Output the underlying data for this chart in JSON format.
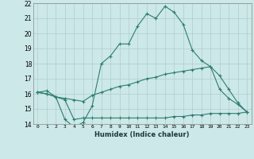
{
  "xlabel": "Humidex (Indice chaleur)",
  "x": [
    0,
    1,
    2,
    3,
    4,
    5,
    6,
    7,
    8,
    9,
    10,
    11,
    12,
    13,
    14,
    15,
    16,
    17,
    18,
    19,
    20,
    21,
    22,
    23
  ],
  "line1": [
    16.1,
    16.2,
    15.8,
    14.3,
    13.8,
    14.1,
    15.2,
    18.0,
    18.5,
    19.3,
    19.3,
    20.5,
    21.3,
    21.0,
    21.8,
    21.4,
    20.6,
    18.9,
    18.2,
    17.8,
    16.3,
    15.7,
    15.3,
    14.8
  ],
  "line2": [
    16.1,
    16.0,
    15.8,
    15.7,
    15.6,
    15.5,
    15.9,
    16.1,
    16.3,
    16.5,
    16.6,
    16.8,
    17.0,
    17.1,
    17.3,
    17.4,
    17.5,
    17.6,
    17.7,
    17.8,
    17.2,
    16.3,
    15.4,
    14.8
  ],
  "line3": [
    16.1,
    16.0,
    15.8,
    15.6,
    14.3,
    14.4,
    14.4,
    14.4,
    14.4,
    14.4,
    14.4,
    14.4,
    14.4,
    14.4,
    14.4,
    14.5,
    14.5,
    14.6,
    14.6,
    14.7,
    14.7,
    14.7,
    14.7,
    14.8
  ],
  "line_color": "#2d7d6e",
  "bg_color": "#cce8e8",
  "grid_color": "#b0cccc",
  "ylim": [
    14,
    22
  ],
  "yticks": [
    14,
    15,
    16,
    17,
    18,
    19,
    20,
    21,
    22
  ],
  "xlim": [
    -0.5,
    23.5
  ]
}
